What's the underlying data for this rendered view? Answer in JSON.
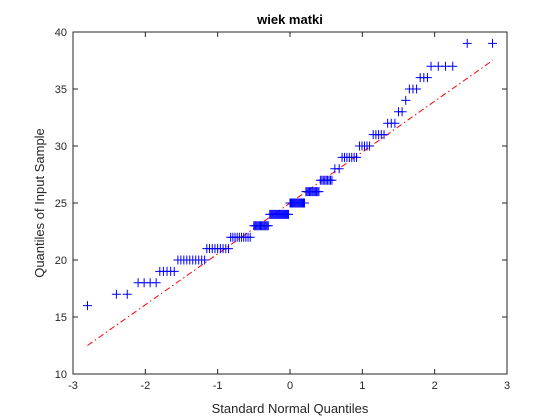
{
  "chart_data": {
    "type": "scatter",
    "subtype": "qq-plot",
    "title": "wiek matki",
    "xlabel": "Standard Normal Quantiles",
    "ylabel": "Quantiles of Input Sample",
    "xlim": [
      -3,
      3
    ],
    "ylim": [
      10,
      40
    ],
    "xticks": [
      -3,
      -2,
      -1,
      0,
      1,
      2,
      3
    ],
    "yticks": [
      10,
      15,
      20,
      25,
      30,
      35,
      40
    ],
    "grid": false,
    "colors": {
      "points": "#0000ff",
      "reference_line": "#ff0000",
      "axes": "#262626"
    },
    "marker": "plus",
    "reference_line": {
      "style": "dash-dot",
      "points": [
        [
          -2.8,
          12.5
        ],
        [
          2.8,
          37.5
        ]
      ]
    },
    "groups": [
      {
        "y": 16,
        "x_from": -2.8,
        "x_to": -2.8,
        "n": 1
      },
      {
        "y": 17,
        "x_from": -2.4,
        "x_to": -2.25,
        "n": 2
      },
      {
        "y": 18,
        "x_from": -2.1,
        "x_to": -1.85,
        "n": 4
      },
      {
        "y": 19,
        "x_from": -1.8,
        "x_to": -1.6,
        "n": 5
      },
      {
        "y": 20,
        "x_from": -1.55,
        "x_to": -1.18,
        "n": 10
      },
      {
        "y": 21,
        "x_from": -1.15,
        "x_to": -0.85,
        "n": 9
      },
      {
        "y": 22,
        "x_from": -0.82,
        "x_to": -0.55,
        "n": 10
      },
      {
        "y": 23,
        "x_from": -0.5,
        "x_to": -0.3,
        "n": 14
      },
      {
        "y": 24,
        "x_from": -0.28,
        "x_to": -0.02,
        "n": 20
      },
      {
        "y": 25,
        "x_from": 0.0,
        "x_to": 0.2,
        "n": 16
      },
      {
        "y": 26,
        "x_from": 0.22,
        "x_to": 0.4,
        "n": 12
      },
      {
        "y": 27,
        "x_from": 0.42,
        "x_to": 0.58,
        "n": 9
      },
      {
        "y": 28,
        "x_from": 0.62,
        "x_to": 0.68,
        "n": 2
      },
      {
        "y": 29,
        "x_from": 0.72,
        "x_to": 0.92,
        "n": 7
      },
      {
        "y": 30,
        "x_from": 0.96,
        "x_to": 1.1,
        "n": 5
      },
      {
        "y": 31,
        "x_from": 1.15,
        "x_to": 1.3,
        "n": 5
      },
      {
        "y": 32,
        "x_from": 1.35,
        "x_to": 1.45,
        "n": 3
      },
      {
        "y": 33,
        "x_from": 1.5,
        "x_to": 1.55,
        "n": 2
      },
      {
        "y": 34,
        "x_from": 1.6,
        "x_to": 1.6,
        "n": 1
      },
      {
        "y": 35,
        "x_from": 1.65,
        "x_to": 1.75,
        "n": 3
      },
      {
        "y": 36,
        "x_from": 1.8,
        "x_to": 1.9,
        "n": 3
      },
      {
        "y": 37,
        "x_from": 1.95,
        "x_to": 2.25,
        "n": 4
      },
      {
        "y": 39,
        "x_from": 2.45,
        "x_to": 2.8,
        "n": 2
      }
    ]
  }
}
